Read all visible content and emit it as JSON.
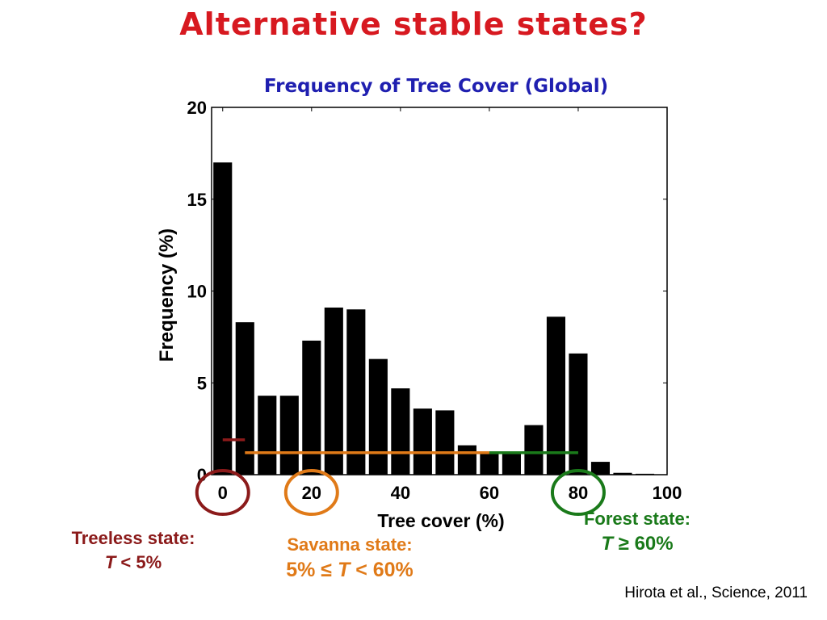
{
  "slide_title": "Alternative stable states?",
  "citation": "Hirota et al., Science, 2011",
  "colors": {
    "title": "#d71920",
    "chart_title": "#1f1fb0",
    "bars": "#000000",
    "treeless": "#8b1a1a",
    "savanna": "#e07a18",
    "forest": "#1a7a1a"
  },
  "states": {
    "treeless": {
      "name": "Treeless state:",
      "rule_var": "T",
      "rule_rest": " < 5%"
    },
    "savanna": {
      "name": "Savanna state:",
      "rule_pre": "5% ≤ ",
      "rule_var": "T",
      "rule_rest": " < 60%"
    },
    "forest": {
      "name": "Forest state:",
      "rule_var": "T",
      "rule_rest": " ≥ 60%"
    }
  },
  "chart_data": {
    "type": "bar",
    "title": "Frequency of Tree Cover (Global)",
    "xlabel": "Tree cover (%)",
    "ylabel": "Frequency (%)",
    "xlim": [
      -2.5,
      100
    ],
    "ylim": [
      0,
      20
    ],
    "xticks": [
      0,
      20,
      40,
      60,
      80,
      100
    ],
    "yticks": [
      0,
      5,
      10,
      15,
      20
    ],
    "bin_width": 5,
    "x": [
      0,
      5,
      10,
      15,
      20,
      25,
      30,
      35,
      40,
      45,
      50,
      55,
      60,
      65,
      70,
      75,
      80,
      85,
      90,
      95
    ],
    "values": [
      17.0,
      8.3,
      4.3,
      4.3,
      7.3,
      9.1,
      9.0,
      6.3,
      4.7,
      3.6,
      3.5,
      1.6,
      1.2,
      1.2,
      2.7,
      8.6,
      6.6,
      0.7,
      0.1,
      0.05
    ],
    "ranges": [
      {
        "state": "treeless",
        "from": 0,
        "to": 5,
        "y": 1.9
      },
      {
        "state": "savanna",
        "from": 5,
        "to": 60,
        "y": 1.2
      },
      {
        "state": "forest",
        "from": 60,
        "to": 80,
        "y": 1.2
      }
    ],
    "circled_ticks": [
      {
        "state": "treeless",
        "x": 0
      },
      {
        "state": "savanna",
        "x": 20
      },
      {
        "state": "forest",
        "x": 80
      }
    ],
    "grid": false
  }
}
